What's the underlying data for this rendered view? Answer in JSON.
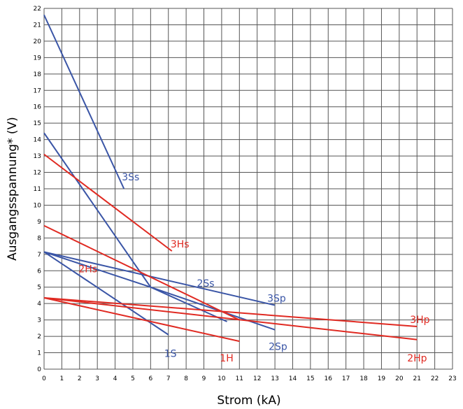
{
  "chart_data": {
    "type": "line",
    "title": "",
    "xlabel": "Strom (kA)",
    "ylabel": "Ausgangsspannung* (V)",
    "xlim": [
      0,
      23
    ],
    "ylim": [
      0,
      22
    ],
    "grid": true,
    "x_ticks": [
      "0",
      "1",
      "2",
      "3",
      "4",
      "5",
      "6",
      "7",
      "8",
      "9",
      "10",
      "11",
      "12",
      "13",
      "14",
      "15",
      "16",
      "17",
      "18",
      "19",
      "20",
      "21",
      "22",
      "23"
    ],
    "y_ticks": [
      "0",
      "1",
      "2",
      "3",
      "4",
      "5",
      "6",
      "7",
      "8",
      "9",
      "10",
      "11",
      "12",
      "13",
      "14",
      "15",
      "16",
      "17",
      "18",
      "19",
      "20",
      "21",
      "22"
    ],
    "colors": {
      "blue": "#3a55a6",
      "red": "#e02a22"
    },
    "series": [
      {
        "name": "3Ss",
        "color": "blue",
        "x": [
          0,
          4.5
        ],
        "y": [
          21.6,
          11.0
        ]
      },
      {
        "name": "2Ss",
        "color": "blue",
        "x": [
          0,
          6,
          10.3
        ],
        "y": [
          14.4,
          5.0,
          2.9
        ]
      },
      {
        "name": "3Sp",
        "color": "blue",
        "x": [
          0,
          13
        ],
        "y": [
          7.15,
          3.9
        ]
      },
      {
        "name": "2Sp",
        "color": "blue",
        "x": [
          0,
          6,
          13
        ],
        "y": [
          7.15,
          5.0,
          2.4
        ]
      },
      {
        "name": "1S",
        "color": "blue",
        "x": [
          0,
          7
        ],
        "y": [
          7.15,
          2.1
        ]
      },
      {
        "name": "3Hs",
        "color": "red",
        "x": [
          0,
          7.2
        ],
        "y": [
          13.1,
          7.2
        ]
      },
      {
        "name": "2Hs",
        "color": "red",
        "x": [
          0,
          11
        ],
        "y": [
          8.75,
          3.0
        ]
      },
      {
        "name": "3Hp",
        "color": "red",
        "x": [
          0,
          21
        ],
        "y": [
          4.35,
          2.6
        ]
      },
      {
        "name": "2Hp",
        "color": "red",
        "x": [
          0,
          21
        ],
        "y": [
          4.35,
          1.8
        ]
      },
      {
        "name": "1H",
        "color": "red",
        "x": [
          0,
          11
        ],
        "y": [
          4.35,
          1.7
        ]
      }
    ]
  }
}
